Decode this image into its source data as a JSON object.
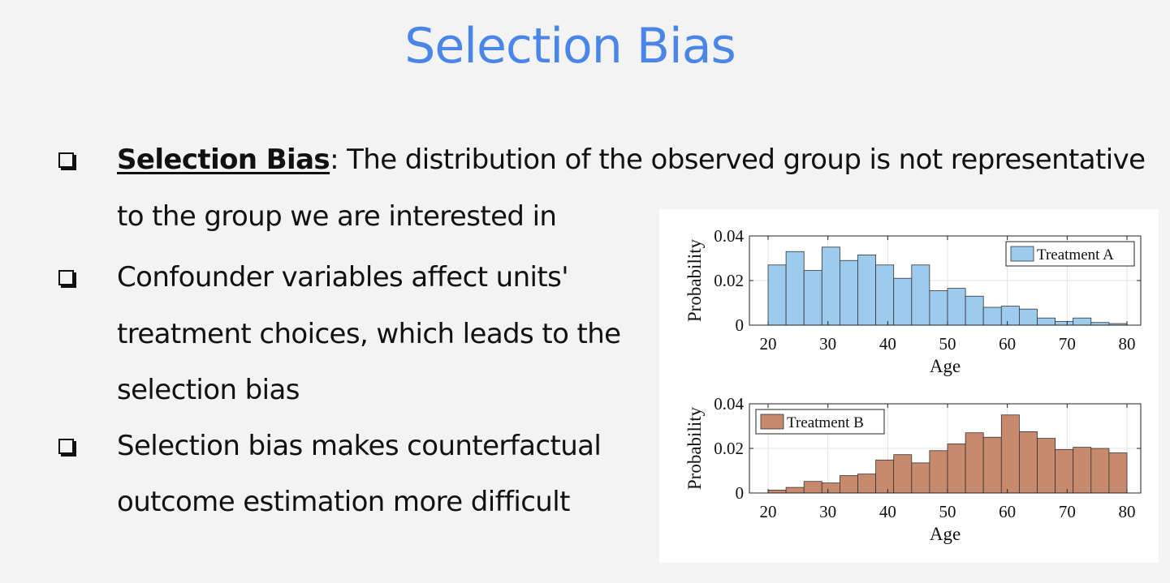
{
  "slide": {
    "title": "Selection Bias",
    "bullets": [
      {
        "term": "Selection Bias",
        "lines": [
          ": The distribution of the observed group is not representative",
          "to the group we are interested in"
        ]
      },
      {
        "lines": [
          "Confounder variables affect units'",
          "treatment choices, which leads to the",
          "selection bias"
        ]
      },
      {
        "lines": [
          "Selection bias makes counterfactual",
          "outcome estimation more difficult"
        ]
      }
    ]
  },
  "chart_data": [
    {
      "type": "bar",
      "title": "",
      "xlabel": "Age",
      "ylabel": "Probability",
      "xlim": [
        20,
        80
      ],
      "ylim": [
        0,
        0.04
      ],
      "xticks": [
        "20",
        "30",
        "40",
        "50",
        "60",
        "70",
        "80"
      ],
      "yticks": [
        "0",
        "0.02",
        "0.04"
      ],
      "bin_edges": [
        20,
        23,
        26,
        29,
        32,
        35,
        38,
        41,
        44,
        47,
        50,
        53,
        56,
        59,
        62,
        65,
        68,
        71,
        74,
        77,
        80
      ],
      "series": [
        {
          "name": "Treatment A",
          "color": "#9ccbee",
          "values": [
            0.027,
            0.033,
            0.0245,
            0.035,
            0.029,
            0.0315,
            0.027,
            0.021,
            0.027,
            0.0155,
            0.0165,
            0.013,
            0.008,
            0.0085,
            0.0072,
            0.0032,
            0.0017,
            0.0032,
            0.0012,
            0.0007
          ]
        }
      ],
      "legend": "top-right",
      "grid": true
    },
    {
      "type": "bar",
      "title": "",
      "xlabel": "Age",
      "ylabel": "Probability",
      "xlim": [
        20,
        80
      ],
      "ylim": [
        0,
        0.04
      ],
      "xticks": [
        "20",
        "30",
        "40",
        "50",
        "60",
        "70",
        "80"
      ],
      "yticks": [
        "0",
        "0.02",
        "0.04"
      ],
      "bin_edges": [
        20,
        23,
        26,
        29,
        32,
        35,
        38,
        41,
        44,
        47,
        50,
        53,
        56,
        59,
        62,
        65,
        68,
        71,
        74,
        77,
        80
      ],
      "series": [
        {
          "name": "Treatment B",
          "color": "#c88a6d",
          "values": [
            0.0013,
            0.0025,
            0.0052,
            0.0045,
            0.0078,
            0.0085,
            0.0148,
            0.0172,
            0.0135,
            0.019,
            0.022,
            0.027,
            0.025,
            0.035,
            0.0275,
            0.0245,
            0.0195,
            0.0205,
            0.02,
            0.018
          ]
        }
      ],
      "legend": "top-left",
      "grid": true
    }
  ]
}
